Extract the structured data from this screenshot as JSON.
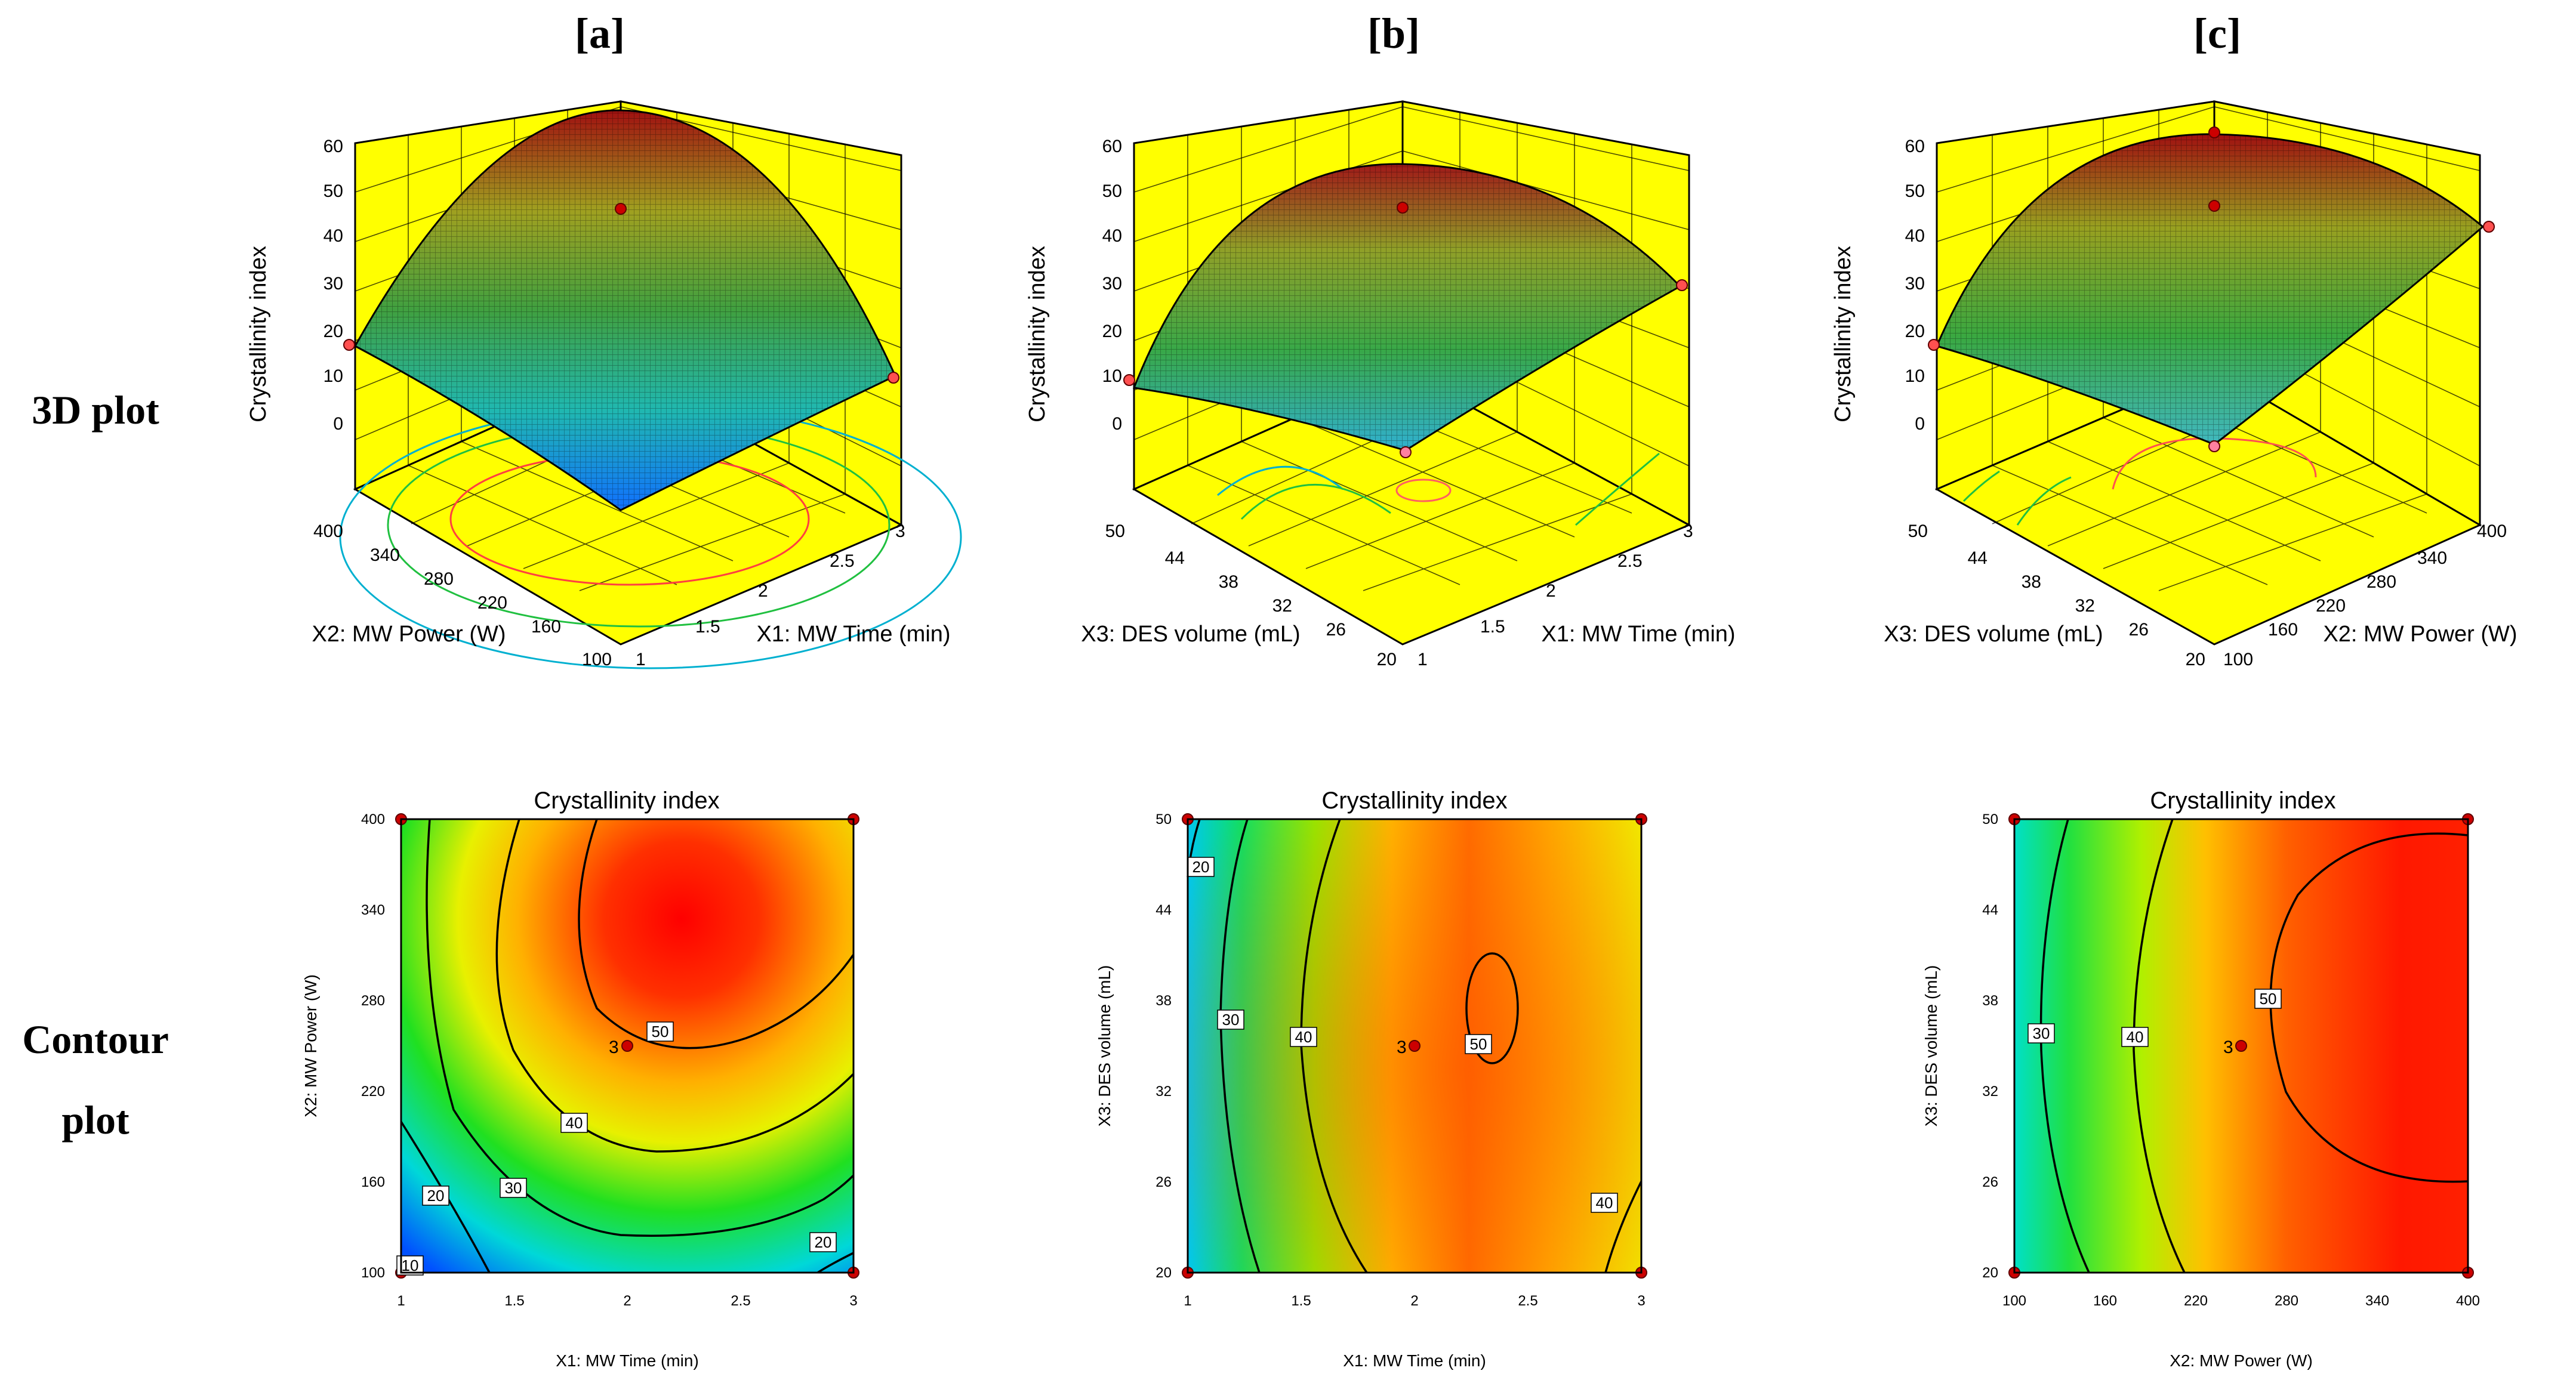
{
  "row_labels": {
    "top": "3D plot",
    "bottom_line1": "Contour",
    "bottom_line2": "plot"
  },
  "colors": {
    "wall": "#ffff00",
    "surface_high": "#c00000",
    "surface_low": "#00a0ff",
    "contour_line": "#000000",
    "design_point": "#cc0000"
  },
  "panels": [
    {
      "label": "[a]",
      "surface": {
        "zlabel": "Crystallinity index",
        "zticks": [
          "0",
          "10",
          "20",
          "30",
          "40",
          "50",
          "60"
        ],
        "xlabel": "X1: MW Time (min)",
        "xticks": [
          "1",
          "1.5",
          "2",
          "2.5",
          "3"
        ],
        "ylabel": "X2: MW Power (W)",
        "yticks": [
          "100",
          "160",
          "220",
          "280",
          "340",
          "400"
        ]
      },
      "contour": {
        "title": "Crystallinity index",
        "xlabel": "X1: MW Time (min)",
        "xticks": [
          "1",
          "1.5",
          "2",
          "2.5",
          "3"
        ],
        "ylabel": "X2: MW Power (W)",
        "yticks": [
          "100",
          "160",
          "220",
          "280",
          "340",
          "400"
        ],
        "center_label": "3",
        "contour_labels": [
          {
            "text": "10",
            "x": 1.04,
            "y": 100
          },
          {
            "text": "20",
            "x": 1.16,
            "y": 164
          },
          {
            "text": "30",
            "x": 1.5,
            "y": 160
          },
          {
            "text": "40",
            "x": 1.77,
            "y": 200
          },
          {
            "text": "50",
            "x": 2.15,
            "y": 255
          },
          {
            "text": "20",
            "x": 2.88,
            "y": 121
          }
        ]
      }
    },
    {
      "label": "[b]",
      "surface": {
        "zlabel": "Crystallinity index",
        "zticks": [
          "0",
          "10",
          "20",
          "30",
          "40",
          "50",
          "60"
        ],
        "xlabel": "X1: MW Time (min)",
        "xticks": [
          "1",
          "1.5",
          "2",
          "2.5",
          "3"
        ],
        "ylabel": "X3: DES volume (mL)",
        "yticks": [
          "20",
          "26",
          "32",
          "38",
          "44",
          "50"
        ]
      },
      "contour": {
        "title": "Crystallinity index",
        "xlabel": "X1: MW Time (min)",
        "xticks": [
          "1",
          "1.5",
          "2",
          "2.5",
          "3"
        ],
        "ylabel": "X3: DES volume (mL)",
        "yticks": [
          "20",
          "26",
          "32",
          "38",
          "44",
          "50"
        ],
        "center_label": "3",
        "contour_labels": [
          {
            "text": "20",
            "x": 1.06,
            "y": 46.5
          },
          {
            "text": "30",
            "x": 1.19,
            "y": 36.7
          },
          {
            "text": "40",
            "x": 1.51,
            "y": 36.0
          },
          {
            "text": "50",
            "x": 2.28,
            "y": 35.0
          },
          {
            "text": "40",
            "x": 2.83,
            "y": 24.8
          }
        ]
      }
    },
    {
      "label": "[c]",
      "surface": {
        "zlabel": "Crystallinity index",
        "zticks": [
          "0",
          "10",
          "20",
          "30",
          "40",
          "50",
          "60"
        ],
        "xlabel": "X2: MW Power (W)",
        "xticks": [
          "100",
          "160",
          "220",
          "280",
          "340",
          "400"
        ],
        "ylabel": "X3: DES volume (mL)",
        "yticks": [
          "20",
          "26",
          "32",
          "38",
          "44",
          "50"
        ]
      },
      "contour": {
        "title": "Crystallinity index",
        "xlabel": "X2: MW Power (W)",
        "xticks": [
          "100",
          "160",
          "220",
          "280",
          "340",
          "400"
        ],
        "ylabel": "X3: DES volume (mL)",
        "yticks": [
          "20",
          "26",
          "32",
          "38",
          "44",
          "50"
        ],
        "center_label": "3",
        "contour_labels": [
          {
            "text": "30",
            "x": 118,
            "y": 36.0
          },
          {
            "text": "40",
            "x": 180,
            "y": 36.0
          },
          {
            "text": "50",
            "x": 268,
            "y": 38.2
          }
        ]
      }
    }
  ],
  "chart_data": [
    {
      "type": "surface",
      "title": "[a]",
      "xlabel": "X1: MW Time (min)",
      "xlim": [
        1,
        3
      ],
      "ylabel": "X2: MW Power (W)",
      "ylim": [
        100,
        400
      ],
      "zlabel": "Crystallinity index",
      "zlim": [
        0,
        60
      ],
      "series": [
        {
          "values": [
            {
              "x": 2,
              "y": 250,
              "z": 49
            },
            {
              "x": 1,
              "y": 400,
              "z": 19
            },
            {
              "x": 3,
              "y": 100,
              "z": 20
            },
            {
              "x": 1,
              "y": 100,
              "z": 7
            },
            {
              "x": 3,
              "y": 400,
              "z": 38
            }
          ]
        }
      ]
    },
    {
      "type": "surface",
      "title": "[b]",
      "xlabel": "X1: MW Time (min)",
      "xlim": [
        1,
        3
      ],
      "ylabel": "X3: DES volume (mL)",
      "ylim": [
        20,
        50
      ],
      "zlabel": "Crystallinity index",
      "zlim": [
        0,
        60
      ],
      "series": [
        {
          "values": [
            {
              "x": 2,
              "y": 35,
              "z": 49
            },
            {
              "x": 1,
              "y": 50,
              "z": 11
            },
            {
              "x": 3,
              "y": 20,
              "z": 31
            },
            {
              "x": 1,
              "y": 20,
              "z": 15
            },
            {
              "x": 3,
              "y": 50,
              "z": 33
            }
          ]
        }
      ]
    },
    {
      "type": "surface",
      "title": "[c]",
      "xlabel": "X2: MW Power (W)",
      "xlim": [
        100,
        400
      ],
      "ylabel": "X3: DES volume (mL)",
      "ylim": [
        20,
        50
      ],
      "zlabel": "Crystallinity index",
      "zlim": [
        0,
        60
      ],
      "series": [
        {
          "values": [
            {
              "x": 250,
              "y": 35,
              "z": 49
            },
            {
              "x": 100,
              "y": 50,
              "z": 19
            },
            {
              "x": 400,
              "y": 20,
              "z": 45
            },
            {
              "x": 100,
              "y": 20,
              "z": 17
            },
            {
              "x": 400,
              "y": 50,
              "z": 55
            }
          ]
        }
      ]
    },
    {
      "type": "heatmap",
      "title": "Crystallinity index",
      "xlabel": "X1: MW Time (min)",
      "xlim": [
        1,
        3
      ],
      "ylabel": "X2: MW Power (W)",
      "ylim": [
        100,
        400
      ],
      "contour_levels": [
        10,
        20,
        30,
        40,
        50
      ],
      "points": [
        {
          "x": 1,
          "y": 100
        },
        {
          "x": 1,
          "y": 400
        },
        {
          "x": 3,
          "y": 100
        },
        {
          "x": 3,
          "y": 400
        },
        {
          "x": 2,
          "y": 250,
          "label": "3"
        }
      ]
    },
    {
      "type": "heatmap",
      "title": "Crystallinity index",
      "xlabel": "X1: MW Time (min)",
      "xlim": [
        1,
        3
      ],
      "ylabel": "X3: DES volume (mL)",
      "ylim": [
        20,
        50
      ],
      "contour_levels": [
        20,
        30,
        40,
        50
      ],
      "points": [
        {
          "x": 1,
          "y": 20
        },
        {
          "x": 1,
          "y": 50
        },
        {
          "x": 3,
          "y": 20
        },
        {
          "x": 3,
          "y": 50
        },
        {
          "x": 2,
          "y": 35,
          "label": "3"
        }
      ]
    },
    {
      "type": "heatmap",
      "title": "Crystallinity index",
      "xlabel": "X2: MW Power (W)",
      "xlim": [
        100,
        400
      ],
      "ylabel": "X3: DES volume (mL)",
      "ylim": [
        20,
        50
      ],
      "contour_levels": [
        30,
        40,
        50
      ],
      "points": [
        {
          "x": 100,
          "y": 20
        },
        {
          "x": 100,
          "y": 50
        },
        {
          "x": 400,
          "y": 20
        },
        {
          "x": 400,
          "y": 50
        },
        {
          "x": 250,
          "y": 35,
          "label": "3"
        }
      ]
    }
  ]
}
